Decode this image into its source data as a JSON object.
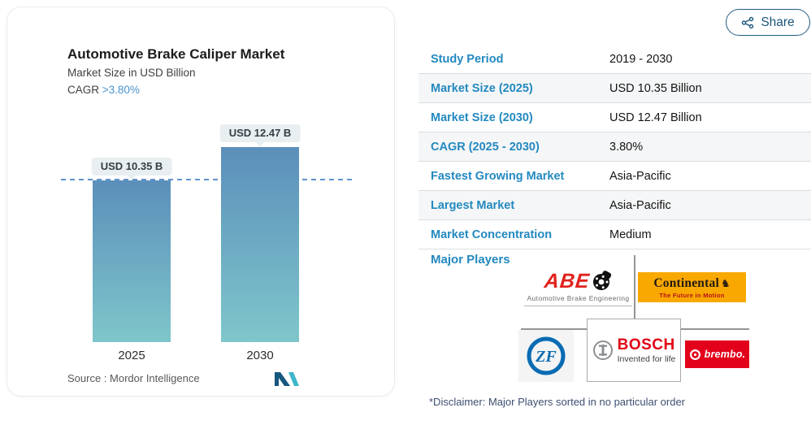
{
  "header": {
    "share_label": "Share"
  },
  "chart_card": {
    "title": "Automotive Brake Caliper Market",
    "subtitle": "Market Size in USD Billion",
    "cagr_label": "CAGR ",
    "cagr_value": ">3.80%",
    "source": "Source :  Mordor Intelligence"
  },
  "chart_data": {
    "type": "bar",
    "title": "Automotive Brake Caliper Market",
    "ylabel": "Market Size in USD Billion",
    "categories": [
      "2025",
      "2030"
    ],
    "values": [
      10.35,
      12.47
    ],
    "value_labels": [
      "USD 10.35 B",
      "USD 12.47 B"
    ],
    "cagr_pct": 3.8,
    "reference_line_value": 10.35,
    "ylim": [
      0,
      13
    ],
    "grid": false,
    "legend": false,
    "bar_color_top": "#5b8fba",
    "bar_color_bottom": "#7fc6cb"
  },
  "stats_table": {
    "rows": [
      {
        "label": "Study Period",
        "value": "2019 - 2030"
      },
      {
        "label": "Market Size (2025)",
        "value": "USD 10.35 Billion"
      },
      {
        "label": "Market Size (2030)",
        "value": "USD 12.47 Billion"
      },
      {
        "label": "CAGR (2025 - 2030)",
        "value": "3.80%"
      },
      {
        "label": "Fastest Growing Market",
        "value": "Asia-Pacific"
      },
      {
        "label": "Largest Market",
        "value": "Asia-Pacific"
      },
      {
        "label": "Market Concentration",
        "value": "Medium"
      }
    ]
  },
  "major_players": {
    "heading": "Major Players",
    "abe_name": "ABE",
    "abe_tagline": "Automotive Brake Engineering",
    "continental_name": "Continental",
    "continental_tagline": "The Future in Motion",
    "zf_name": "ZF",
    "bosch_name": "BOSCH",
    "bosch_tagline": "Invented for life",
    "brembo_name": "brembo."
  },
  "footer": {
    "disclaimer": "*Disclaimer: Major Players sorted in no particular order"
  },
  "colors": {
    "accent_blue": "#2389c0",
    "share_blue": "#1b567c",
    "cagr_blue": "#4a94ce",
    "dashed_line": "#5f93cf",
    "continental_bg": "#f9a800",
    "brembo_bg": "#e2001a",
    "bosch_red": "#e20015",
    "zf_blue": "#0a6cb3",
    "abe_red": "#e0231c"
  }
}
